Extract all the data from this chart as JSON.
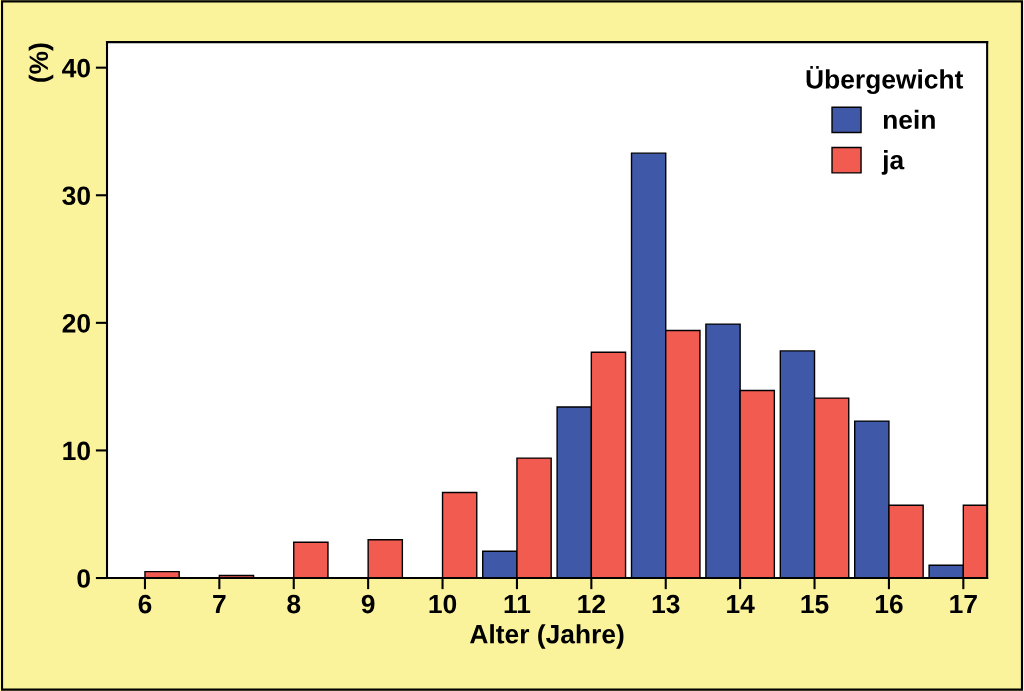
{
  "chart_data": {
    "type": "bar",
    "xlabel": "Alter (Jahre)",
    "ylabel": "(%)",
    "legend_title": "Übergewicht",
    "categories": [
      "6",
      "7",
      "8",
      "9",
      "10",
      "11",
      "12",
      "13",
      "14",
      "15",
      "16",
      "17"
    ],
    "series": [
      {
        "name": "nein",
        "color": "#3f59a8",
        "values": [
          null,
          null,
          null,
          null,
          null,
          2.1,
          13.4,
          33.3,
          19.9,
          17.8,
          12.3,
          1.0
        ]
      },
      {
        "name": "ja",
        "color": "#f25b50",
        "values": [
          0.5,
          0.2,
          2.8,
          3.0,
          6.7,
          9.4,
          17.7,
          19.4,
          14.7,
          14.1,
          5.7,
          5.7
        ]
      }
    ],
    "ylim": [
      0,
      42
    ],
    "yticks": [
      0,
      10,
      20,
      30,
      40
    ],
    "grid": false,
    "legend": "top right"
  }
}
